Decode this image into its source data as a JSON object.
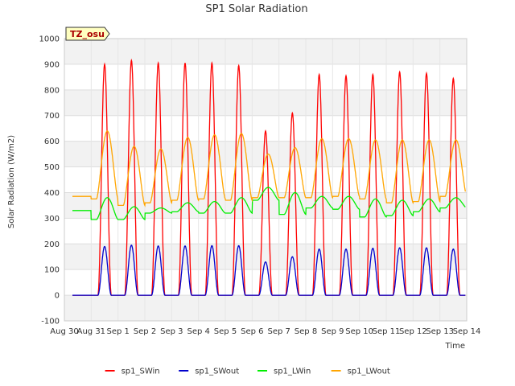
{
  "chart_data": {
    "type": "line",
    "title": "SP1 Solar Radiation",
    "xlabel": "Time",
    "ylabel": "Solar Radiation (W/m2)",
    "ylim": [
      -100,
      1000
    ],
    "xlim": [
      0,
      15
    ],
    "yticks": [
      -100,
      0,
      100,
      200,
      300,
      400,
      500,
      600,
      700,
      800,
      900,
      1000
    ],
    "xtick_labels": [
      "Aug 30",
      "Aug 31",
      "Sep 1",
      "Sep 2",
      "Sep 3",
      "Sep 4",
      "Sep 5",
      "Sep 6",
      "Sep 7",
      "Sep 8",
      "Sep 9",
      "Sep 10",
      "Sep 11",
      "Sep 12",
      "Sep 13",
      "Sep 14"
    ],
    "grid": true,
    "legend_position": "bottom",
    "badge_label": "TZ_osu",
    "days": [
      "Aug 30",
      "Aug 31",
      "Sep 1",
      "Sep 2",
      "Sep 3",
      "Sep 4",
      "Sep 5",
      "Sep 6",
      "Sep 7",
      "Sep 8",
      "Sep 9",
      "Sep 10",
      "Sep 11",
      "Sep 12",
      "Sep 13"
    ],
    "series": [
      {
        "name": "sp1_SWin",
        "color": "#ff0000",
        "daily_peak": [
          null,
          900,
          915,
          905,
          905,
          905,
          895,
          640,
          710,
          860,
          855,
          860,
          870,
          865,
          845
        ]
      },
      {
        "name": "sp1_SWout",
        "color": "#0000cc",
        "daily_peak": [
          null,
          190,
          195,
          192,
          192,
          193,
          193,
          130,
          150,
          180,
          180,
          183,
          185,
          185,
          180
        ]
      },
      {
        "name": "sp1_LWin",
        "color": "#00ee00",
        "daily_min": [
          330,
          295,
          295,
          320,
          325,
          320,
          320,
          370,
          315,
          340,
          335,
          305,
          310,
          325,
          340
        ],
        "daily_max": [
          330,
          380,
          345,
          340,
          360,
          365,
          380,
          420,
          400,
          385,
          385,
          375,
          370,
          375,
          380
        ]
      },
      {
        "name": "sp1_LWout",
        "color": "#ffa500",
        "daily_min": [
          385,
          375,
          350,
          360,
          370,
          375,
          370,
          380,
          380,
          380,
          385,
          375,
          360,
          365,
          385
        ],
        "daily_max": [
          385,
          640,
          580,
          570,
          615,
          625,
          630,
          550,
          575,
          610,
          610,
          605,
          605,
          605,
          605
        ]
      }
    ]
  }
}
